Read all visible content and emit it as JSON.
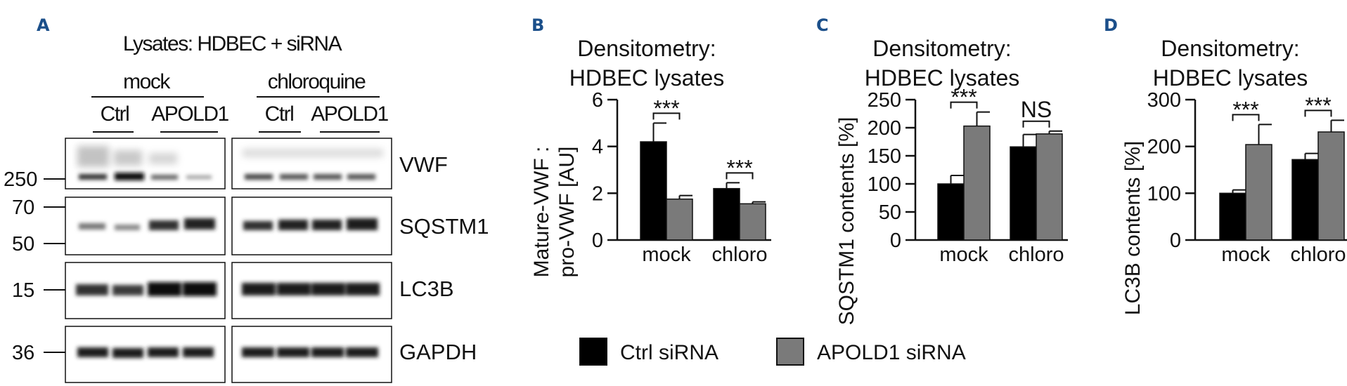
{
  "panels": {
    "a": {
      "letter": "A",
      "header": "Lysates: HDBEC + siRNA",
      "group_mock": "mock",
      "group_chloroquine": "chloroquine",
      "lane_ctrl": "Ctrl",
      "lane_apold1": "APOLD1",
      "proteins": [
        "VWF",
        "SQSTM1",
        "LC3B",
        "GAPDH"
      ],
      "markers": [
        "250",
        "70",
        "50",
        "15",
        "36"
      ]
    },
    "b": {
      "letter": "B",
      "title_line1": "Densitometry:",
      "title_line2": "HDBEC lysates"
    },
    "c": {
      "letter": "C",
      "title_line1": "Densitometry:",
      "title_line2": "HDBEC lysates"
    },
    "d": {
      "letter": "D",
      "title_line1": "Densitometry:",
      "title_line2": "HDBEC lysates"
    }
  },
  "legend": {
    "ctrl_label": "Ctrl siRNA",
    "apold1_label": "APOLD1 siRNA"
  },
  "colors": {
    "ctrl": "#000000",
    "apold1": "#7a7a7a",
    "accent": "#1b4f8a"
  },
  "chart_data": [
    {
      "type": "bar",
      "panel": "B",
      "title": "Densitometry: HDBEC lysates",
      "ylabel_line1": "Mature-VWF :",
      "ylabel_line2": "pro-VWF [AU]",
      "categories": [
        "mock",
        "chloro"
      ],
      "series": [
        {
          "name": "Ctrl siRNA",
          "values": [
            4.2,
            2.2
          ],
          "errors": [
            0.8,
            0.25
          ]
        },
        {
          "name": "APOLD1 siRNA",
          "values": [
            1.75,
            1.55
          ],
          "errors": [
            0.15,
            0.08
          ]
        }
      ],
      "ylim": [
        0,
        6
      ],
      "yticks": [
        "0",
        "2",
        "4",
        "6"
      ],
      "significance": [
        "***",
        "***"
      ]
    },
    {
      "type": "bar",
      "panel": "C",
      "title": "Densitometry: HDBEC lysates",
      "ylabel": "SQSTM1 contents [%]",
      "categories": [
        "mock",
        "chloro"
      ],
      "series": [
        {
          "name": "Ctrl siRNA",
          "values": [
            100,
            166
          ],
          "errors": [
            15,
            22
          ]
        },
        {
          "name": "APOLD1 siRNA",
          "values": [
            203,
            189
          ],
          "errors": [
            25,
            5
          ]
        }
      ],
      "ylim": [
        0,
        250
      ],
      "yticks": [
        "0",
        "50",
        "100",
        "150",
        "200",
        "250"
      ],
      "significance": [
        "***",
        "NS"
      ]
    },
    {
      "type": "bar",
      "panel": "D",
      "title": "Densitometry: HDBEC lysates",
      "ylabel": "LC3B contents [%]",
      "categories": [
        "mock",
        "chloro"
      ],
      "series": [
        {
          "name": "Ctrl siRNA",
          "values": [
            100,
            172
          ],
          "errors": [
            7,
            13
          ]
        },
        {
          "name": "APOLD1 siRNA",
          "values": [
            204,
            231
          ],
          "errors": [
            43,
            25
          ]
        }
      ],
      "ylim": [
        0,
        300
      ],
      "yticks": [
        "0",
        "100",
        "200",
        "300"
      ],
      "significance": [
        "***",
        "***"
      ]
    }
  ]
}
